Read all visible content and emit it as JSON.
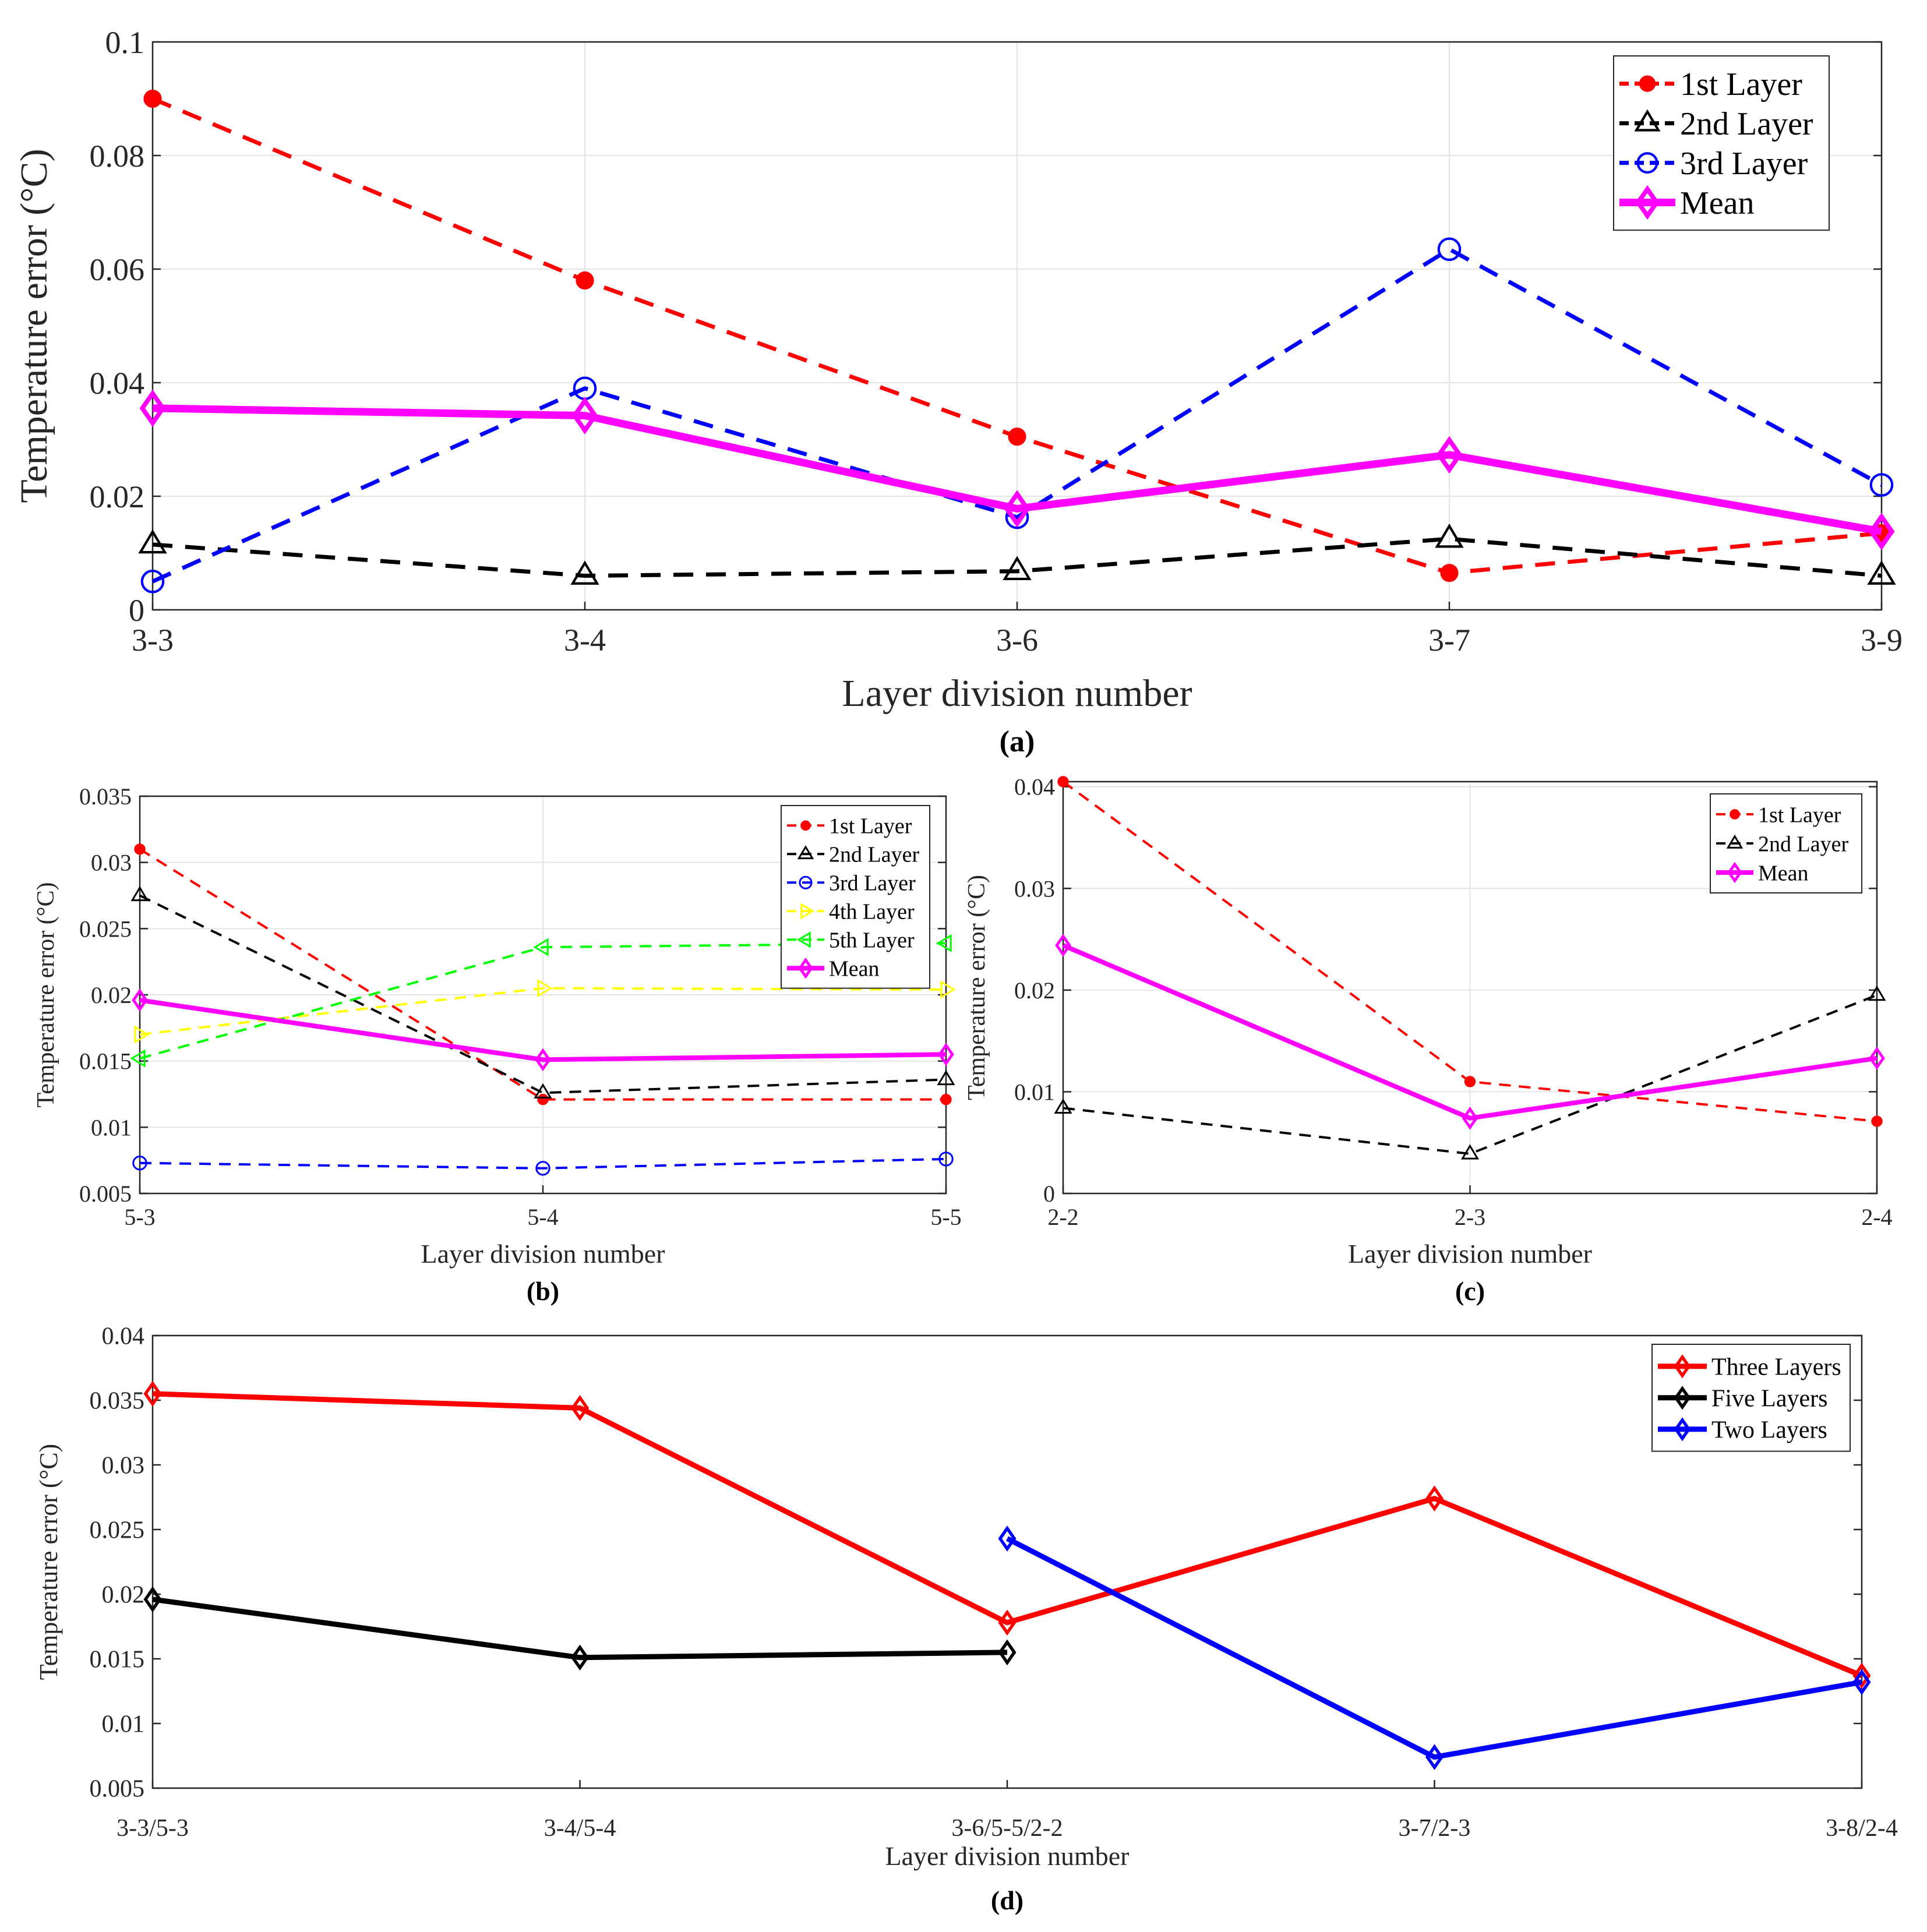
{
  "chart_data": [
    {
      "panel": "(a)",
      "type": "line",
      "xlabel": "Layer division number",
      "ylabel": "Temperature error (°C)",
      "categories": [
        "3-3",
        "3-4",
        "3-6",
        "3-7",
        "3-9"
      ],
      "ylim": [
        0,
        0.1
      ],
      "yticks": [
        0,
        0.02,
        0.04,
        0.06,
        0.08,
        0.1
      ],
      "ytick_labels": [
        "0",
        "0.02",
        "0.04",
        "0.06",
        "0.08",
        "0.1"
      ],
      "grid": true,
      "legend_position": "top-right",
      "series": [
        {
          "name": "1st Layer",
          "color": "#ff0000",
          "dash": "dashed",
          "marker": "dot",
          "values": [
            0.09,
            0.058,
            0.0305,
            0.0065,
            0.0135
          ]
        },
        {
          "name": "2nd Layer",
          "color": "#000000",
          "dash": "dashed",
          "marker": "triangle-up",
          "values": [
            0.0115,
            0.006,
            0.0068,
            0.0125,
            0.006
          ]
        },
        {
          "name": "3rd Layer",
          "color": "#0000ff",
          "dash": "dashed",
          "marker": "circle",
          "values": [
            0.005,
            0.039,
            0.0163,
            0.0635,
            0.022
          ]
        },
        {
          "name": "Mean",
          "color": "#ff00ff",
          "dash": "solid",
          "marker": "diamond",
          "values": [
            0.0355,
            0.0342,
            0.0178,
            0.0273,
            0.0138
          ]
        }
      ]
    },
    {
      "panel": "(b)",
      "type": "line",
      "xlabel": "Layer division number",
      "ylabel": "Temperature error (°C)",
      "categories": [
        "5-3",
        "5-4",
        "5-5"
      ],
      "ylim": [
        0.005,
        0.035
      ],
      "yticks": [
        0.005,
        0.01,
        0.015,
        0.02,
        0.025,
        0.03,
        0.035
      ],
      "ytick_labels": [
        "0.005",
        "0.01",
        "0.015",
        "0.02",
        "0.025",
        "0.03",
        "0.035"
      ],
      "grid": true,
      "legend_position": "top-right",
      "series": [
        {
          "name": "1st Layer",
          "color": "#ff0000",
          "dash": "dashed",
          "marker": "dot",
          "values": [
            0.031,
            0.0121,
            0.0121
          ]
        },
        {
          "name": "2nd Layer",
          "color": "#000000",
          "dash": "dashed",
          "marker": "triangle-up",
          "values": [
            0.0275,
            0.0126,
            0.0136
          ]
        },
        {
          "name": "3rd Layer",
          "color": "#0000ff",
          "dash": "dashed",
          "marker": "circle",
          "values": [
            0.0073,
            0.0069,
            0.0076
          ]
        },
        {
          "name": "4th Layer",
          "color": "#ffff00",
          "dash": "dashed",
          "marker": "triangle-right",
          "values": [
            0.017,
            0.0205,
            0.0204
          ]
        },
        {
          "name": "5th Layer",
          "color": "#00ff00",
          "dash": "dashed",
          "marker": "triangle-left",
          "values": [
            0.0152,
            0.0236,
            0.0239
          ]
        },
        {
          "name": "Mean",
          "color": "#ff00ff",
          "dash": "solid",
          "marker": "diamond",
          "values": [
            0.0196,
            0.0151,
            0.0155
          ]
        }
      ]
    },
    {
      "panel": "(c)",
      "type": "line",
      "xlabel": "Layer division number",
      "ylabel": "Temperature error (°C)",
      "categories": [
        "2-2",
        "2-3",
        "2-4"
      ],
      "ylim": [
        0,
        0.0405
      ],
      "yticks": [
        0,
        0.01,
        0.02,
        0.03,
        0.04
      ],
      "ytick_labels": [
        "0",
        "0.01",
        "0.02",
        "0.03",
        "0.04"
      ],
      "grid": true,
      "legend_position": "top-right",
      "series": [
        {
          "name": "1st Layer",
          "color": "#ff0000",
          "dash": "dashed",
          "marker": "dot",
          "values": [
            0.0405,
            0.011,
            0.0071
          ]
        },
        {
          "name": "2nd Layer",
          "color": "#000000",
          "dash": "dashed",
          "marker": "triangle-up",
          "values": [
            0.0084,
            0.0039,
            0.0195
          ]
        },
        {
          "name": "Mean",
          "color": "#ff00ff",
          "dash": "solid",
          "marker": "diamond",
          "values": [
            0.0244,
            0.0074,
            0.0133
          ]
        }
      ]
    },
    {
      "panel": "(d)",
      "type": "line",
      "xlabel": "Layer division number",
      "ylabel": "Temperature error (°C)",
      "categories": [
        "3-3/5-3",
        "3-4/5-4",
        "3-6/5-5/2-2",
        "3-7/2-3",
        "3-8/2-4"
      ],
      "ylim": [
        0.005,
        0.04
      ],
      "yticks": [
        0.005,
        0.01,
        0.015,
        0.02,
        0.025,
        0.03,
        0.035,
        0.04
      ],
      "ytick_labels": [
        "0.005",
        "0.01",
        "0.015",
        "0.02",
        "0.025",
        "0.03",
        "0.035",
        "0.04"
      ],
      "grid": false,
      "legend_position": "top-right",
      "series": [
        {
          "name": "Three Layers",
          "color": "#ff0000",
          "dash": "solid",
          "marker": "diamond",
          "values": [
            0.0355,
            0.0344,
            0.0178,
            0.0274,
            0.0137
          ]
        },
        {
          "name": "Five Layers",
          "color": "#000000",
          "dash": "solid",
          "marker": "diamond",
          "values": [
            0.0196,
            0.0151,
            0.0155,
            null,
            null
          ]
        },
        {
          "name": "Two Layers",
          "color": "#0000ff",
          "dash": "solid",
          "marker": "diamond",
          "values": [
            null,
            null,
            0.0243,
            0.0074,
            0.0132
          ]
        }
      ]
    }
  ]
}
